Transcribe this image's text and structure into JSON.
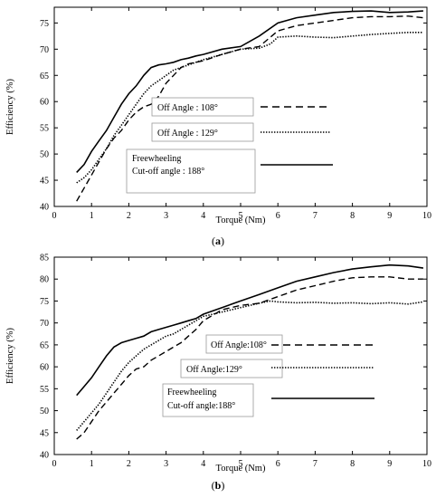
{
  "chart_data": [
    {
      "type": "line",
      "caption_prefix": "(",
      "caption_letter": "a",
      "caption_suffix": ")",
      "xlabel": "Torque (Nm)",
      "ylabel": "Efficiency (%)",
      "xlim": [
        0,
        10
      ],
      "ylim": [
        40,
        78
      ],
      "xticks": [
        0,
        1,
        2,
        3,
        4,
        5,
        6,
        7,
        8,
        9,
        10
      ],
      "yticks": [
        40,
        45,
        50,
        55,
        60,
        65,
        70,
        75
      ],
      "grid": false,
      "legend_items": [
        {
          "lines": [
            "Off Angle : 108°"
          ],
          "style": "dashed"
        },
        {
          "lines": [
            "Off Angle : 129°"
          ],
          "style": "dotted"
        },
        {
          "lines": [
            "Freewheeling",
            "Cut-off angle : 188°"
          ],
          "style": "solid"
        }
      ],
      "series": [
        {
          "style": "dashed",
          "x": [
            0.6,
            0.8,
            1.0,
            1.2,
            1.4,
            1.6,
            1.8,
            2.0,
            2.2,
            2.4,
            2.6,
            2.8,
            3.0,
            3.2,
            3.4,
            3.6,
            3.8,
            4.0,
            4.5,
            5.0,
            5.5,
            6.0,
            6.5,
            7.0,
            7.5,
            8.0,
            8.5,
            9.0,
            9.5,
            9.9
          ],
          "y": [
            41,
            43.5,
            46,
            48.5,
            51,
            53,
            54.5,
            56.5,
            58,
            59,
            59.5,
            61,
            63.5,
            65,
            66.5,
            67.2,
            67.5,
            67.8,
            69,
            70,
            70.5,
            73.5,
            74.5,
            75,
            75.5,
            76,
            76.2,
            76.2,
            76.3,
            76
          ]
        },
        {
          "style": "dotted",
          "x": [
            0.6,
            0.8,
            1.0,
            1.2,
            1.4,
            1.6,
            1.8,
            2.0,
            2.2,
            2.4,
            2.6,
            2.8,
            3.0,
            3.2,
            3.4,
            3.6,
            3.8,
            4.0,
            4.5,
            5.0,
            5.5,
            5.8,
            6.0,
            6.5,
            7.0,
            7.5,
            8.0,
            8.5,
            9.0,
            9.5,
            9.9
          ],
          "y": [
            44.5,
            45.5,
            47,
            49,
            51,
            53.5,
            55.5,
            57.5,
            59.5,
            61.5,
            63,
            64,
            65,
            66,
            66.5,
            67,
            67.5,
            68,
            69,
            70,
            70.2,
            71,
            72.3,
            72.5,
            72.3,
            72.2,
            72.5,
            72.8,
            73,
            73.2,
            73.2
          ]
        },
        {
          "style": "solid",
          "x": [
            0.6,
            0.8,
            1.0,
            1.2,
            1.4,
            1.6,
            1.8,
            2.0,
            2.2,
            2.4,
            2.6,
            2.8,
            3.0,
            3.2,
            3.4,
            3.6,
            3.8,
            4.0,
            4.5,
            5.0,
            5.5,
            6.0,
            6.5,
            7.0,
            7.5,
            8.0,
            8.5,
            9.0,
            9.5,
            9.9
          ],
          "y": [
            46.5,
            48,
            50.5,
            52.5,
            54.5,
            57,
            59.5,
            61.5,
            63,
            65,
            66.5,
            67,
            67.2,
            67.5,
            68,
            68.3,
            68.7,
            69,
            70,
            70.5,
            72.5,
            75,
            76,
            76.5,
            77,
            77.2,
            77.3,
            77,
            77.1,
            77.3
          ]
        }
      ]
    },
    {
      "type": "line",
      "caption_prefix": "(",
      "caption_letter": "b",
      "caption_suffix": ")",
      "xlabel": "Torque (Nm)",
      "ylabel": "Efficiency (%)",
      "xlim": [
        0,
        10
      ],
      "ylim": [
        40,
        85
      ],
      "xticks": [
        0,
        1,
        2,
        3,
        4,
        5,
        6,
        7,
        8,
        9,
        10
      ],
      "yticks": [
        40,
        45,
        50,
        55,
        60,
        65,
        70,
        75,
        80,
        85
      ],
      "grid": false,
      "legend_items": [
        {
          "lines": [
            "Off Angle:108°"
          ],
          "style": "dashed"
        },
        {
          "lines": [
            "Off Angle:129°"
          ],
          "style": "dotted"
        },
        {
          "lines": [
            "Freewheeling",
            "Cut-off angle:188°"
          ],
          "style": "solid"
        }
      ],
      "series": [
        {
          "style": "dashed",
          "x": [
            0.6,
            0.8,
            1.0,
            1.2,
            1.4,
            1.6,
            1.8,
            2.0,
            2.2,
            2.4,
            2.6,
            2.8,
            3.0,
            3.2,
            3.4,
            3.6,
            3.8,
            4.0,
            4.5,
            5.0,
            5.5,
            6.0,
            6.5,
            7.0,
            7.5,
            8.0,
            8.5,
            9.0,
            9.5,
            9.9
          ],
          "y": [
            43.5,
            45,
            47.5,
            50,
            52,
            54,
            56,
            58,
            59.5,
            60,
            61.5,
            62.5,
            63.5,
            64.5,
            65.5,
            67,
            68.5,
            70.5,
            73,
            74,
            74.5,
            76,
            77.5,
            78.5,
            79.5,
            80.3,
            80.5,
            80.5,
            80,
            80
          ]
        },
        {
          "style": "dotted",
          "x": [
            0.6,
            0.8,
            1.0,
            1.2,
            1.4,
            1.6,
            1.8,
            2.0,
            2.2,
            2.4,
            2.6,
            2.8,
            3.0,
            3.2,
            3.4,
            3.6,
            3.8,
            4.0,
            4.5,
            5.0,
            5.5,
            5.8,
            6.0,
            6.5,
            7.0,
            7.5,
            8.0,
            8.5,
            9.0,
            9.5,
            9.9
          ],
          "y": [
            45.5,
            47.5,
            49.5,
            51.5,
            54,
            56.5,
            59,
            61,
            62.5,
            64,
            65,
            66,
            67,
            67.5,
            68.5,
            69.5,
            70.5,
            71.5,
            72.5,
            73.5,
            74.5,
            75,
            74.8,
            74.6,
            74.7,
            74.5,
            74.6,
            74.4,
            74.6,
            74.3,
            74.8
          ]
        },
        {
          "style": "solid",
          "x": [
            0.6,
            0.8,
            1.0,
            1.2,
            1.4,
            1.6,
            1.8,
            2.0,
            2.2,
            2.4,
            2.6,
            2.8,
            3.0,
            3.2,
            3.4,
            3.6,
            3.8,
            4.0,
            4.5,
            5.0,
            5.5,
            6.0,
            6.5,
            7.0,
            7.5,
            8.0,
            8.5,
            9.0,
            9.5,
            9.9
          ],
          "y": [
            53.5,
            55.5,
            57.5,
            60,
            62.5,
            64.5,
            65.5,
            66,
            66.5,
            67,
            68,
            68.5,
            69,
            69.5,
            70,
            70.5,
            71,
            72,
            73.5,
            75,
            76.5,
            78,
            79.5,
            80.5,
            81.5,
            82.3,
            82.8,
            83.2,
            83,
            82.5
          ]
        }
      ]
    }
  ]
}
